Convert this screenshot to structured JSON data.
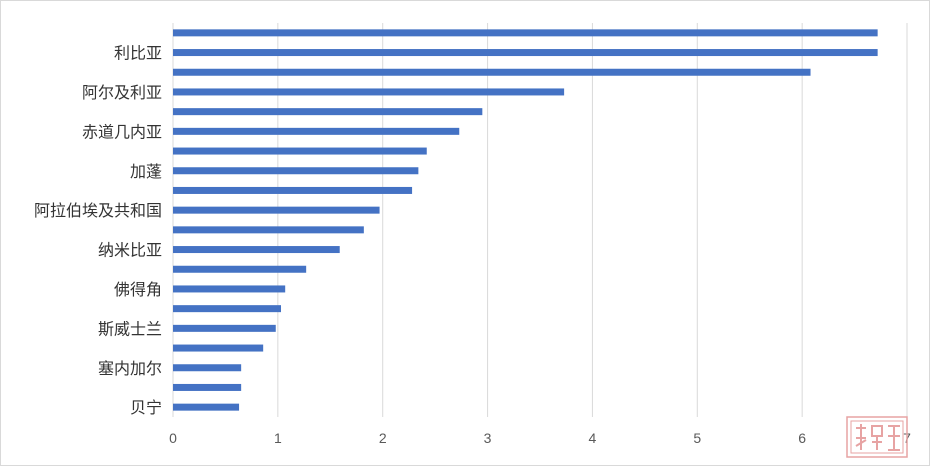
{
  "chart_data": {
    "type": "bar",
    "orientation": "horizontal",
    "title": "",
    "xlabel": "",
    "ylabel": "",
    "xlim": [
      0,
      7
    ],
    "x_ticks": [
      0,
      1,
      2,
      3,
      4,
      5,
      6,
      7
    ],
    "grid": "vertical",
    "legend": "none",
    "bar_color": "#4472C4",
    "categories_top_to_bottom": [
      "",
      "利比亚",
      "",
      "阿尔及利亚",
      "",
      "赤道几内亚",
      "",
      "加蓬",
      "",
      "阿拉伯埃及共和国",
      "",
      "纳米比亚",
      "",
      "佛得角",
      "",
      "斯威士兰",
      "",
      "塞内加尔",
      "",
      "贝宁"
    ],
    "values_top_to_bottom": [
      6.72,
      6.72,
      6.08,
      3.73,
      2.95,
      2.73,
      2.42,
      2.34,
      2.28,
      1.97,
      1.82,
      1.59,
      1.27,
      1.07,
      1.03,
      0.98,
      0.86,
      0.65,
      0.65,
      0.63
    ]
  },
  "watermark_icon": "seal-stamp-icon"
}
